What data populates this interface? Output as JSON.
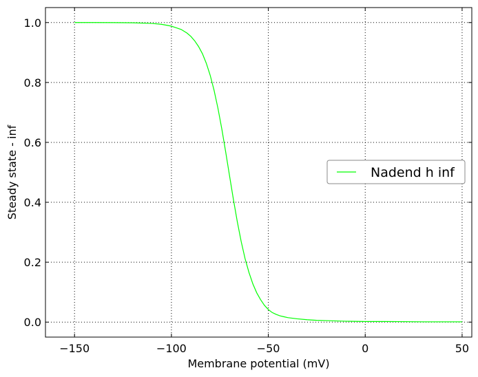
{
  "chart_data": {
    "type": "line",
    "title": "",
    "xlabel": "Membrane potential (mV)",
    "ylabel": "Steady state - inf",
    "xlim": [
      -165,
      55
    ],
    "ylim": [
      -0.05,
      1.05
    ],
    "xticks": [
      -150,
      -100,
      -50,
      0,
      50
    ],
    "xtick_labels": [
      "−150",
      "−100",
      "−50",
      "0",
      "50"
    ],
    "yticks": [
      0.0,
      0.2,
      0.4,
      0.6,
      0.8,
      1.0
    ],
    "ytick_labels": [
      "0.0",
      "0.2",
      "0.4",
      "0.6",
      "0.8",
      "1.0"
    ],
    "grid": true,
    "legend_position": "center-right",
    "series": [
      {
        "name": "Nadend h inf",
        "color": "#00ff00",
        "x": [
          -150,
          -140,
          -130,
          -120,
          -110,
          -105,
          -100,
          -95,
          -92,
          -90,
          -88,
          -86,
          -84,
          -82,
          -80,
          -78,
          -76,
          -74,
          -72,
          -70,
          -68,
          -66,
          -64,
          -62,
          -60,
          -58,
          -56,
          -54,
          -52,
          -50,
          -48,
          -46,
          -44,
          -42,
          -40,
          -35,
          -30,
          -25,
          -20,
          -10,
          0,
          10,
          20,
          30,
          40,
          50
        ],
        "y": [
          1.0,
          1.0,
          0.9998,
          0.9992,
          0.997,
          0.994,
          0.988,
          0.977,
          0.965,
          0.954,
          0.939,
          0.92,
          0.896,
          0.864,
          0.824,
          0.774,
          0.714,
          0.645,
          0.568,
          0.488,
          0.409,
          0.335,
          0.269,
          0.212,
          0.166,
          0.128,
          0.098,
          0.075,
          0.056,
          0.042,
          0.032,
          0.026,
          0.021,
          0.018,
          0.015,
          0.011,
          0.008,
          0.006,
          0.005,
          0.003,
          0.002,
          0.002,
          0.0015,
          0.001,
          0.001,
          0.001
        ]
      }
    ]
  }
}
